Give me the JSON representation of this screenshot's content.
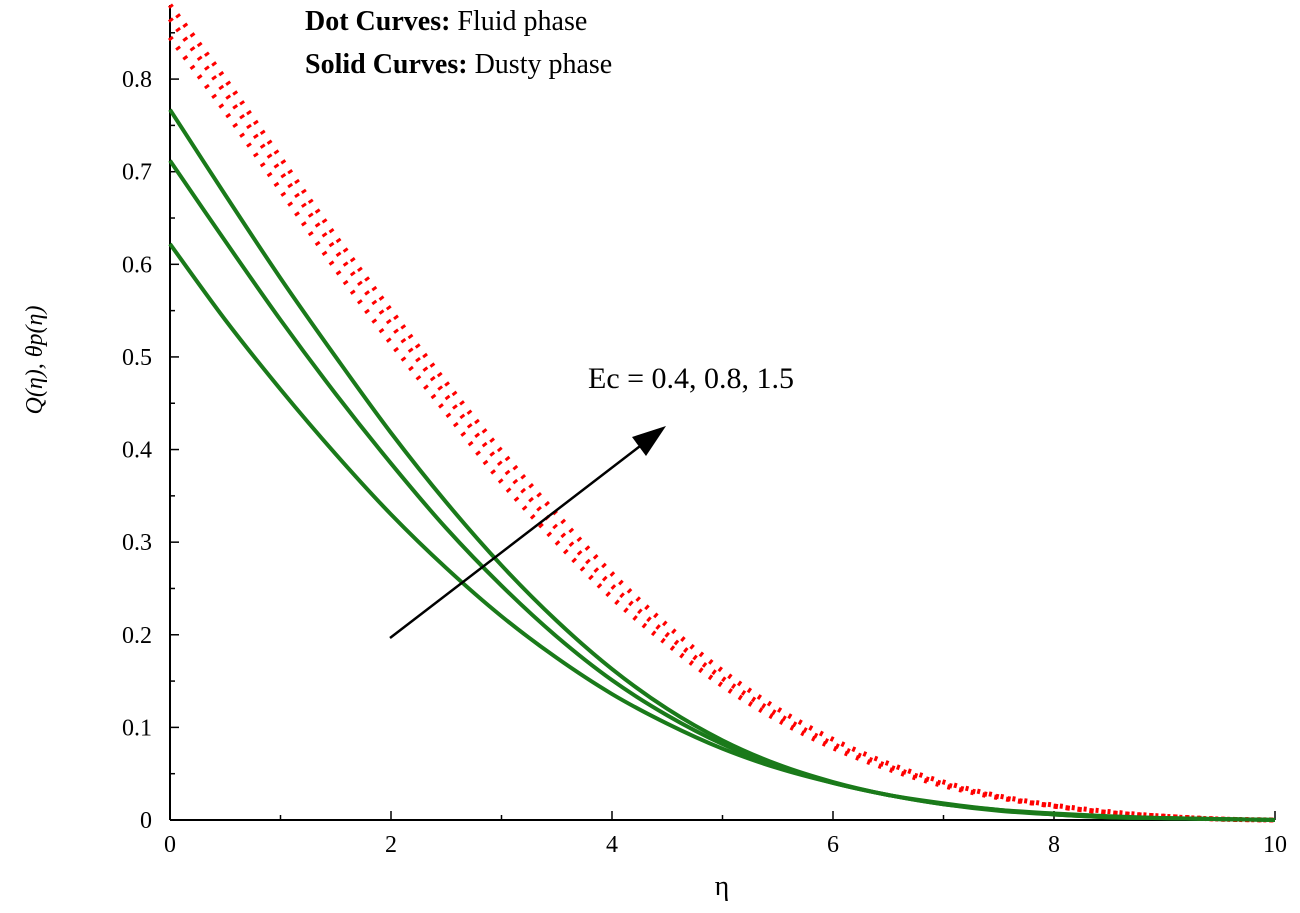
{
  "chart_data": {
    "type": "line",
    "xlabel": "η",
    "ylabel": "Q(η), θp(η)",
    "xlim": [
      0,
      10
    ],
    "ylim": [
      0,
      0.88
    ],
    "xticks": [
      0,
      2,
      4,
      6,
      8,
      10
    ],
    "yticks": [
      0,
      0.1,
      0.2,
      0.3,
      0.4,
      0.5,
      0.6,
      0.7,
      0.8
    ],
    "grid": false,
    "legend": {
      "lines": [
        {
          "bold": "Dot Curves:",
          "text": " Fluid phase"
        },
        {
          "bold": "Solid Curves:",
          "text": " Dusty phase"
        }
      ],
      "placement": "top-center"
    },
    "annotation": {
      "text": "Ec = 0.4, 0.8, 1.5",
      "arrow": true
    },
    "x": [
      0,
      0.5,
      1,
      1.5,
      2,
      2.5,
      3,
      3.5,
      4,
      4.5,
      5,
      5.5,
      6,
      6.5,
      7,
      7.5,
      8,
      8.5,
      9,
      9.5,
      10
    ],
    "series": [
      {
        "style": "dotted",
        "color": "#ff0000",
        "values": [
          0.845,
          0.765,
          0.68,
          0.595,
          0.515,
          0.44,
          0.365,
          0.3,
          0.24,
          0.19,
          0.145,
          0.108,
          0.078,
          0.055,
          0.037,
          0.024,
          0.015,
          0.008,
          0.004,
          0.001,
          0.0
        ]
      },
      {
        "style": "dotted",
        "color": "#ff0000",
        "values": [
          0.865,
          0.785,
          0.7,
          0.615,
          0.535,
          0.458,
          0.383,
          0.315,
          0.253,
          0.2,
          0.153,
          0.114,
          0.082,
          0.058,
          0.039,
          0.025,
          0.015,
          0.008,
          0.004,
          0.001,
          0.0
        ]
      },
      {
        "style": "dotted",
        "color": "#ff0000",
        "values": [
          0.88,
          0.8,
          0.715,
          0.63,
          0.55,
          0.472,
          0.398,
          0.33,
          0.266,
          0.21,
          0.161,
          0.12,
          0.087,
          0.061,
          0.041,
          0.026,
          0.016,
          0.009,
          0.004,
          0.001,
          0.0
        ]
      },
      {
        "style": "solid",
        "color": "#1a7a1a",
        "values": [
          0.622,
          0.54,
          0.465,
          0.395,
          0.33,
          0.272,
          0.22,
          0.175,
          0.136,
          0.104,
          0.077,
          0.056,
          0.04,
          0.027,
          0.018,
          0.011,
          0.007,
          0.004,
          0.002,
          0.001,
          0.0
        ]
      },
      {
        "style": "solid",
        "color": "#1a7a1a",
        "values": [
          0.712,
          0.625,
          0.54,
          0.46,
          0.385,
          0.315,
          0.253,
          0.198,
          0.151,
          0.113,
          0.082,
          0.058,
          0.04,
          0.027,
          0.017,
          0.011,
          0.006,
          0.003,
          0.002,
          0.001,
          0.0
        ]
      },
      {
        "style": "solid",
        "color": "#1a7a1a",
        "values": [
          0.767,
          0.675,
          0.585,
          0.5,
          0.418,
          0.343,
          0.275,
          0.215,
          0.163,
          0.12,
          0.086,
          0.06,
          0.041,
          0.027,
          0.017,
          0.01,
          0.006,
          0.003,
          0.002,
          0.001,
          0.0
        ]
      }
    ]
  }
}
